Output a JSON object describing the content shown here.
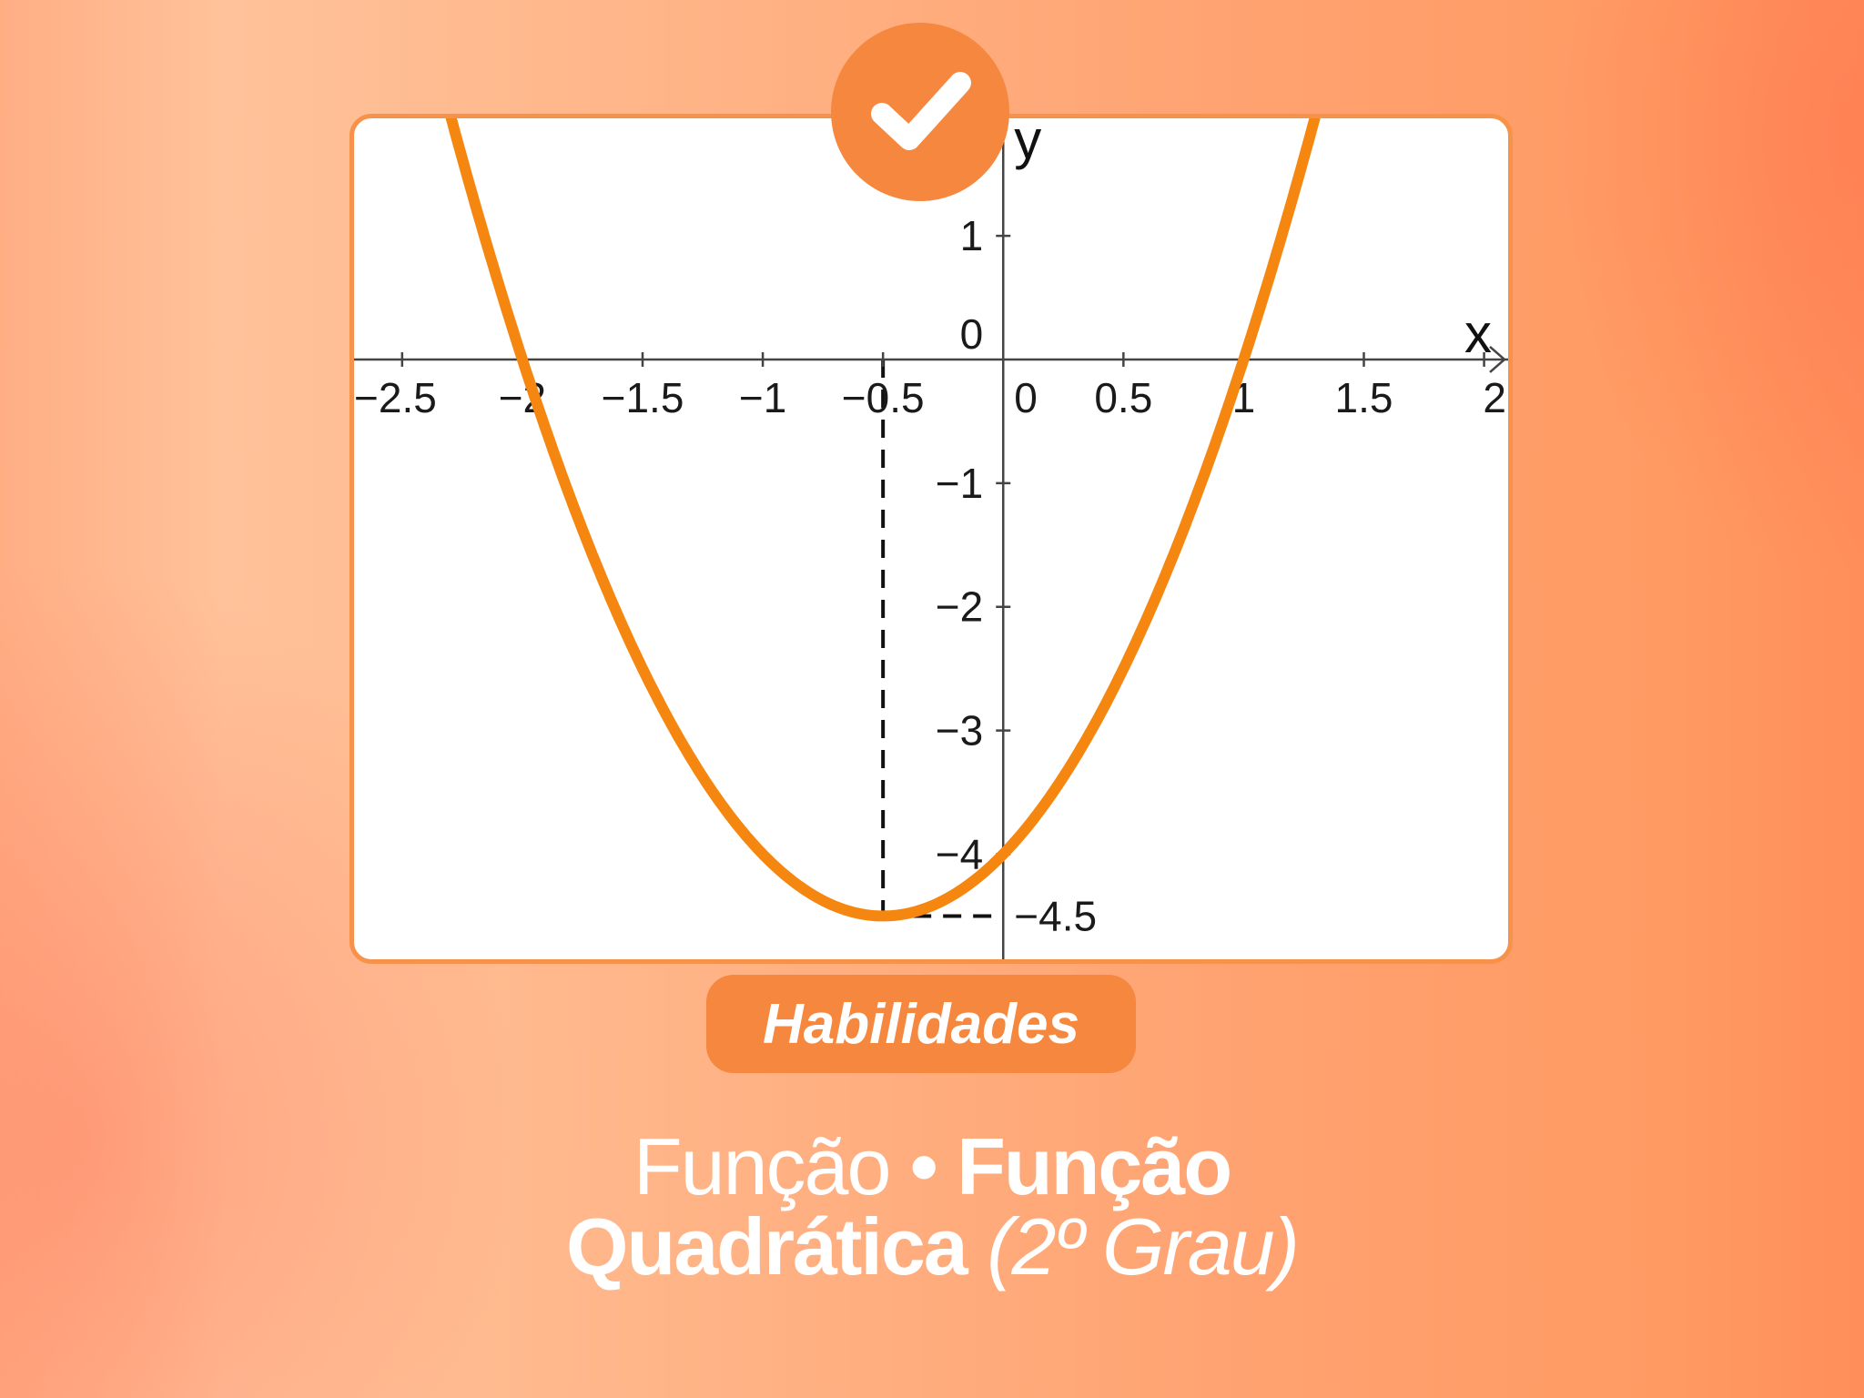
{
  "chart_data": {
    "type": "line",
    "title": "",
    "xlabel": "x",
    "ylabel": "y",
    "xlim": [
      -2.7,
      2.1
    ],
    "ylim": [
      -4.85,
      1.95
    ],
    "x_ticks": [
      -2.5,
      -2,
      -1.5,
      -1,
      -0.5,
      0,
      0.5,
      1,
      1.5,
      2
    ],
    "x_tick_labels": [
      "−2.5",
      "−2",
      "−1.5",
      "−1",
      "−0.5",
      "0",
      "0.5",
      "1",
      "1.5",
      "2"
    ],
    "y_ticks": [
      1,
      0,
      -1,
      -2,
      -3,
      -4
    ],
    "y_tick_labels": [
      "1",
      "0",
      "−1",
      "−2",
      "−3",
      "−4"
    ],
    "series": [
      {
        "name": "",
        "color": "#f5860f",
        "function": "2x^2 + 2x - 4",
        "a": 2,
        "b": 2,
        "c": -4
      }
    ],
    "vertex": {
      "x": -0.5,
      "y": -4.5,
      "label": "−4.5"
    },
    "guide_lines": "dashed",
    "grid": false
  },
  "badge": {
    "icon": "check-icon",
    "color": "#f5873f"
  },
  "skills_label": "Habilidades",
  "topic": {
    "part1": "Função",
    "separator": " • ",
    "part2": "Função",
    "part3": "Quadrática",
    "part4": "(2º Grau)"
  }
}
